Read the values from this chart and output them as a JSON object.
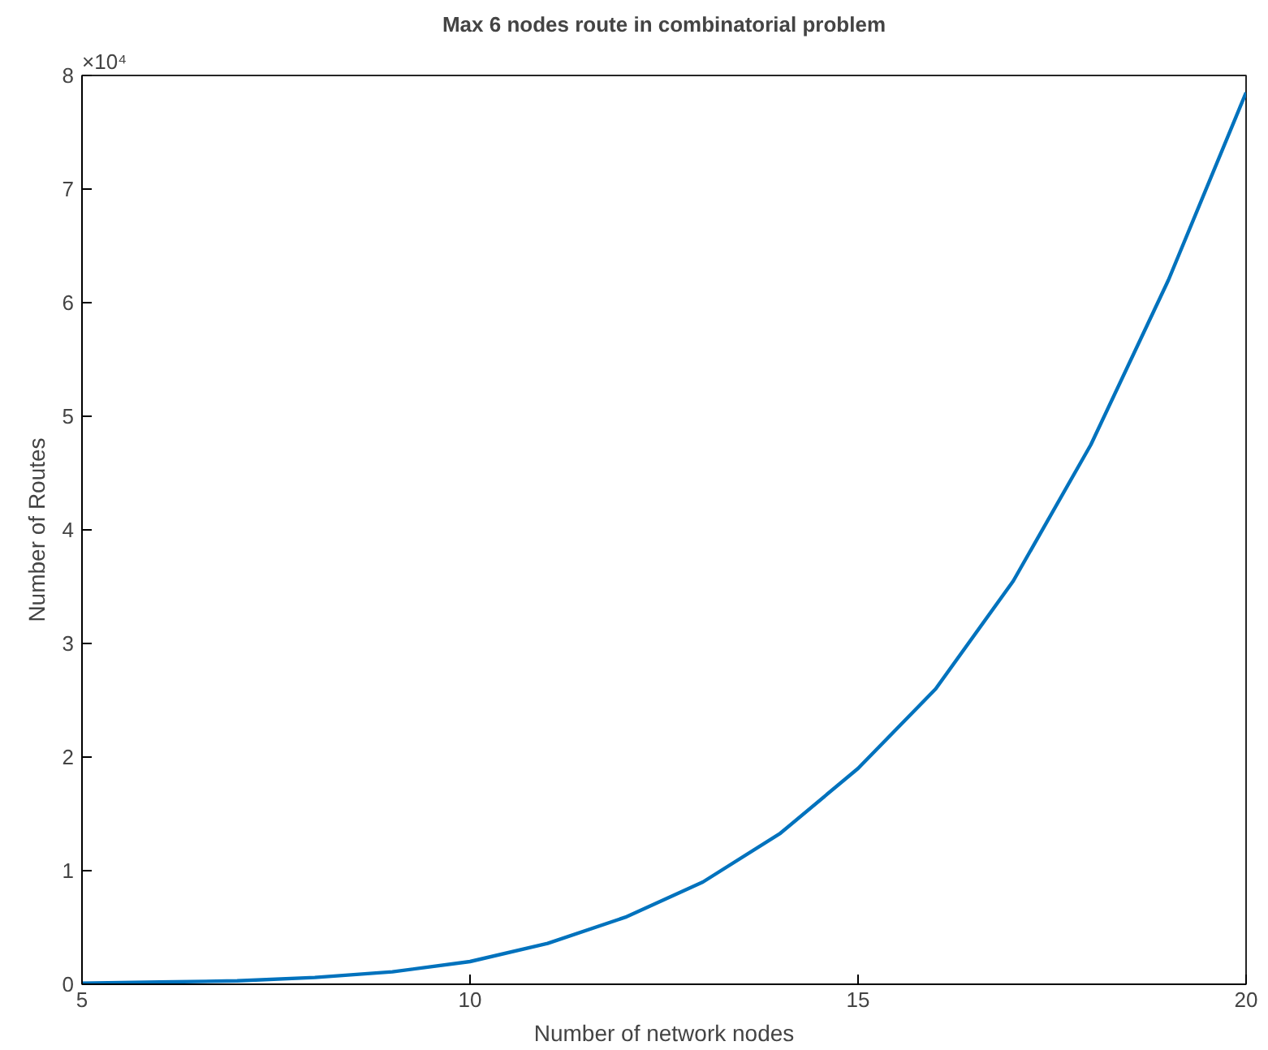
{
  "chart_data": {
    "type": "line",
    "title": "Max 6 nodes route in combinatorial problem",
    "xlabel": "Number of network nodes",
    "ylabel": "Number of Routes",
    "x": [
      5,
      6,
      7,
      8,
      9,
      10,
      11,
      12,
      13,
      14,
      15,
      16,
      17,
      18,
      19,
      20
    ],
    "series": [
      {
        "color": "#0072bd",
        "values": [
          0.01,
          0.02,
          0.03,
          0.06,
          0.11,
          0.2,
          0.36,
          0.59,
          0.9,
          1.33,
          1.9,
          2.6,
          3.55,
          4.75,
          6.2,
          7.85
        ]
      }
    ],
    "xlim": [
      5,
      20
    ],
    "xticks": [
      5,
      10,
      15,
      20
    ],
    "ylim": [
      0,
      8
    ],
    "yticks": [
      0,
      1,
      2,
      3,
      4,
      5,
      6,
      7,
      8
    ],
    "annotations": [
      "×10⁴"
    ],
    "grid": false,
    "marker": "none",
    "line_style": "solid"
  }
}
